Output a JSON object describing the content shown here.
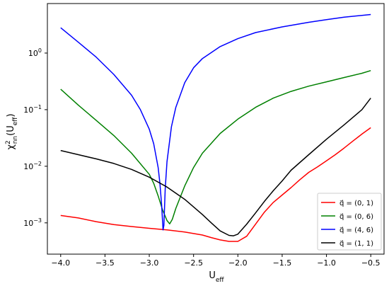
{
  "chart_data": {
    "type": "line",
    "xlabel": "U_eff",
    "ylabel": "χ²_nn(U_eff)",
    "xlim": [
      -4.15,
      -0.35
    ],
    "ylim": [
      0.00028,
      7.5
    ],
    "y_scale": "log",
    "grid": false,
    "legend_position": "lower-right",
    "x_ticks": [
      -4.0,
      -3.5,
      -3.0,
      -2.5,
      -2.0,
      -1.5,
      -1.0,
      -0.5
    ],
    "x_tick_labels": [
      "−4.0",
      "−3.5",
      "−3.0",
      "−2.5",
      "−2.0",
      "−1.5",
      "−1.0",
      "−0.5"
    ],
    "y_ticks": [
      0.001,
      0.01,
      0.1,
      1
    ],
    "y_tick_labels": [
      {
        "base": "10",
        "exp": "−3"
      },
      {
        "base": "10",
        "exp": "−2"
      },
      {
        "base": "10",
        "exp": "−1"
      },
      {
        "base": "10",
        "exp": "0"
      }
    ],
    "series": [
      {
        "name": "q⃗ = (0, 1)",
        "label_parts": {
          "prefix": "q⃗ = ",
          "value": "(0, 1)"
        },
        "color": "#ff0000",
        "x": [
          -4.0,
          -3.8,
          -3.6,
          -3.4,
          -3.2,
          -3.0,
          -2.8,
          -2.6,
          -2.4,
          -2.3,
          -2.2,
          -2.1,
          -2.0,
          -1.9,
          -1.8,
          -1.7,
          -1.6,
          -1.5,
          -1.4,
          -1.3,
          -1.2,
          -1.1,
          -1.0,
          -0.9,
          -0.8,
          -0.7,
          -0.6,
          -0.5
        ],
        "y": [
          0.00135,
          0.00122,
          0.00105,
          0.00093,
          0.00086,
          0.0008,
          0.00075,
          0.00069,
          0.00061,
          0.00055,
          0.0005,
          0.00047,
          0.00047,
          0.00058,
          0.00095,
          0.00155,
          0.0023,
          0.0031,
          0.0042,
          0.0058,
          0.0078,
          0.0098,
          0.0125,
          0.016,
          0.021,
          0.028,
          0.037,
          0.048
        ]
      },
      {
        "name": "q⃗ = (0, 6)",
        "label_parts": {
          "prefix": "q⃗ = ",
          "value": "(0, 6)"
        },
        "color": "#008000",
        "x": [
          -4.0,
          -3.8,
          -3.6,
          -3.4,
          -3.2,
          -3.0,
          -2.95,
          -2.9,
          -2.85,
          -2.8,
          -2.77,
          -2.74,
          -2.7,
          -2.6,
          -2.5,
          -2.4,
          -2.2,
          -2.0,
          -1.8,
          -1.6,
          -1.4,
          -1.2,
          -1.0,
          -0.8,
          -0.6,
          -0.5
        ],
        "y": [
          0.23,
          0.12,
          0.065,
          0.035,
          0.017,
          0.0072,
          0.005,
          0.003,
          0.0017,
          0.0011,
          0.00096,
          0.00115,
          0.0018,
          0.0045,
          0.0095,
          0.017,
          0.038,
          0.068,
          0.11,
          0.16,
          0.21,
          0.26,
          0.31,
          0.37,
          0.44,
          0.49
        ]
      },
      {
        "name": "q⃗ = (4, 6)",
        "label_parts": {
          "prefix": "q⃗ = ",
          "value": "(4, 6)"
        },
        "color": "#0000ff",
        "x": [
          -4.0,
          -3.8,
          -3.6,
          -3.4,
          -3.2,
          -3.1,
          -3.0,
          -2.95,
          -2.9,
          -2.88,
          -2.86,
          -2.845,
          -2.835,
          -2.82,
          -2.8,
          -2.75,
          -2.7,
          -2.6,
          -2.5,
          -2.4,
          -2.2,
          -2.0,
          -1.8,
          -1.5,
          -1.2,
          -1.0,
          -0.8,
          -0.5
        ],
        "y": [
          2.8,
          1.55,
          0.85,
          0.42,
          0.18,
          0.1,
          0.045,
          0.025,
          0.0095,
          0.005,
          0.002,
          0.00075,
          0.0009,
          0.004,
          0.012,
          0.05,
          0.11,
          0.3,
          0.55,
          0.8,
          1.3,
          1.8,
          2.3,
          2.9,
          3.5,
          3.9,
          4.3,
          4.8
        ]
      },
      {
        "name": "q⃗ = (1, 1)",
        "label_parts": {
          "prefix": "q⃗ = ",
          "value": "(1, 1)"
        },
        "color": "#000000",
        "x": [
          -4.0,
          -3.8,
          -3.6,
          -3.4,
          -3.2,
          -3.0,
          -2.8,
          -2.6,
          -2.4,
          -2.3,
          -2.2,
          -2.1,
          -2.05,
          -2.0,
          -1.9,
          -1.8,
          -1.7,
          -1.6,
          -1.5,
          -1.4,
          -1.2,
          -1.0,
          -0.8,
          -0.6,
          -0.5
        ],
        "y": [
          0.019,
          0.016,
          0.0135,
          0.0112,
          0.0088,
          0.0064,
          0.0043,
          0.0026,
          0.0014,
          0.001,
          0.00072,
          0.0006,
          0.00059,
          0.00063,
          0.00095,
          0.0015,
          0.0024,
          0.0037,
          0.0055,
          0.0085,
          0.016,
          0.03,
          0.054,
          0.1,
          0.16
        ]
      }
    ]
  }
}
